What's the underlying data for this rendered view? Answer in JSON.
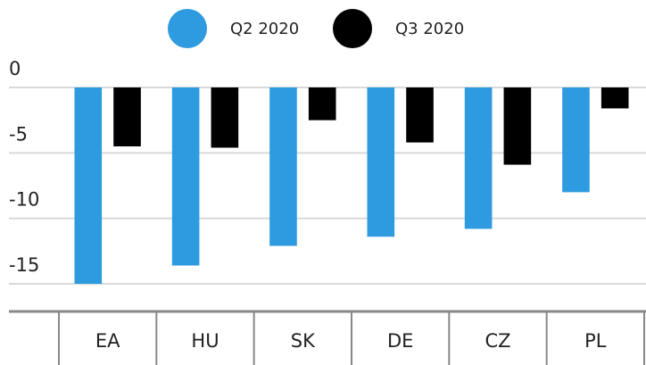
{
  "chart_data": {
    "type": "bar",
    "categories": [
      "EA",
      "HU",
      "SK",
      "DE",
      "CZ",
      "PL"
    ],
    "series": [
      {
        "name": "Q2 2020",
        "color": "#2e9be0",
        "values": [
          -15.0,
          -13.6,
          -12.1,
          -11.4,
          -10.8,
          -8.0
        ]
      },
      {
        "name": "Q3 2020",
        "color": "#000000",
        "values": [
          -4.5,
          -4.6,
          -2.5,
          -4.2,
          -5.9,
          -1.6
        ]
      }
    ],
    "ylim": [
      -17,
      0
    ],
    "yticks": [
      0,
      -5,
      -10,
      -15
    ],
    "grid": true
  }
}
